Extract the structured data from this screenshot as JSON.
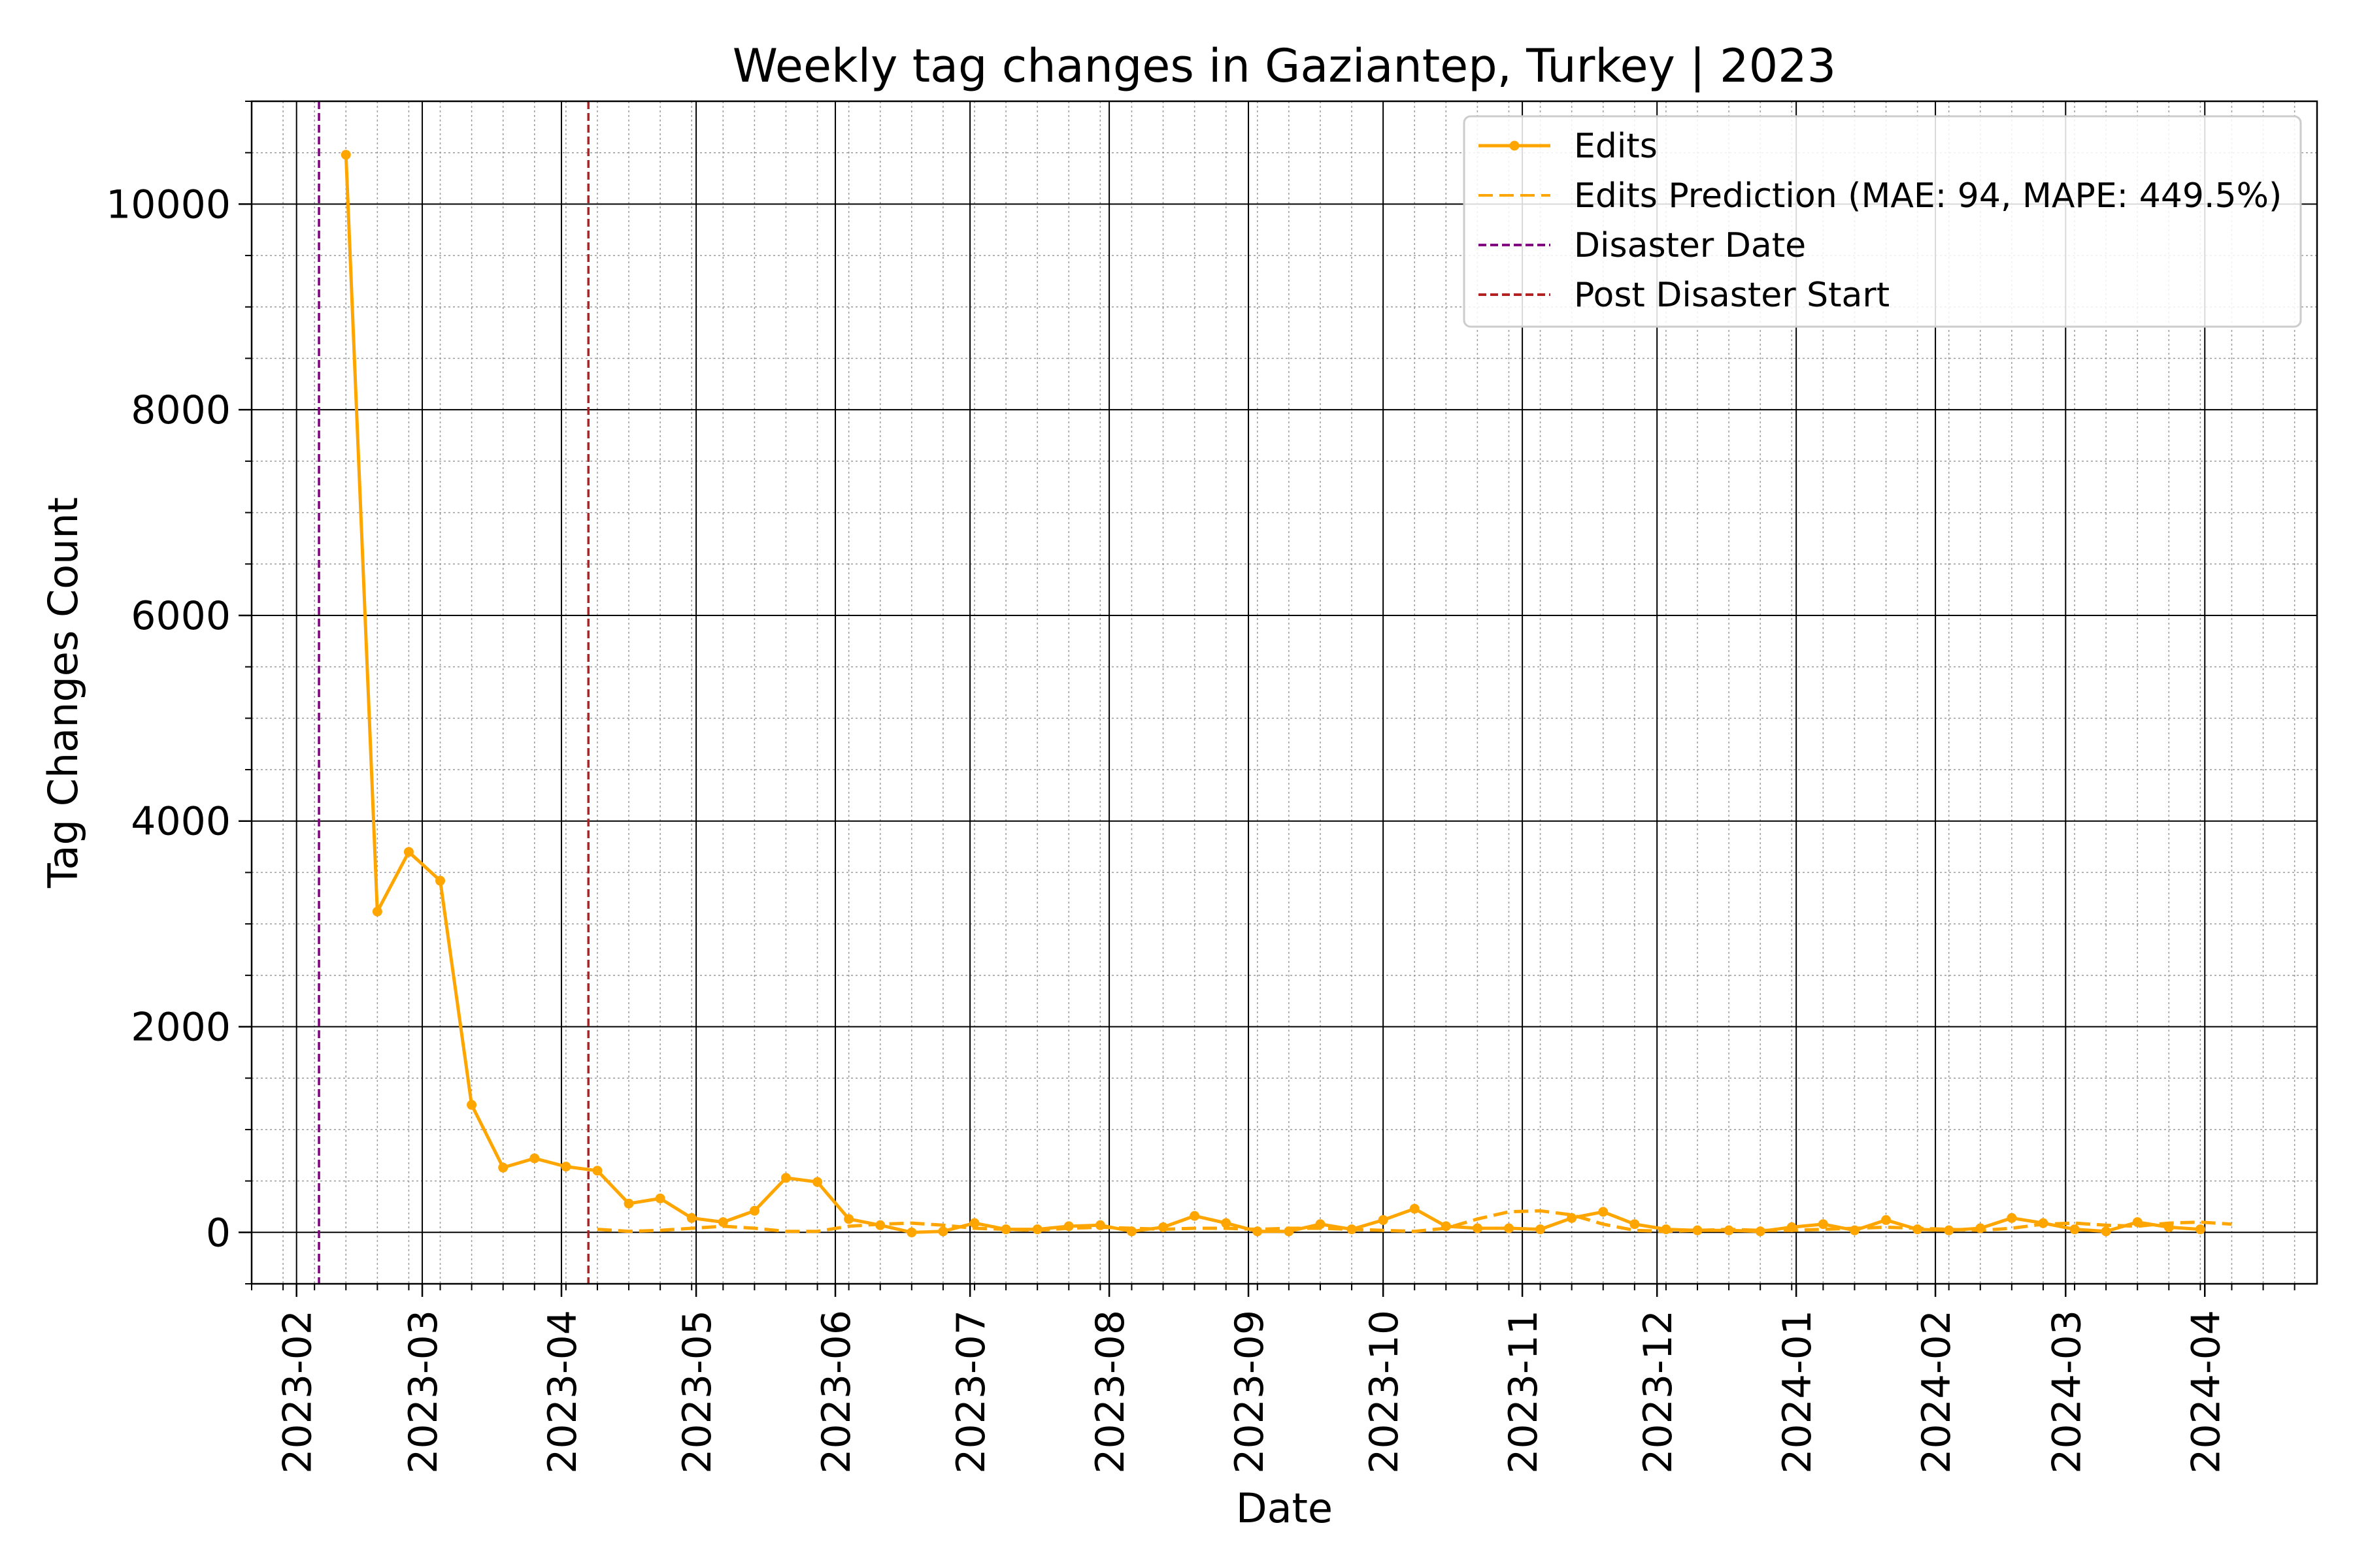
{
  "chart_data": {
    "type": "line",
    "title": "Weekly tag changes in Gaziantep, Turkey | 2023",
    "xlabel": "Date",
    "ylabel": "Tag Changes Count",
    "xlim": [
      "2023-01-22",
      "2024-04-26"
    ],
    "ylim": [
      -500,
      11000
    ],
    "x_ticks": [
      "2023-02",
      "2023-03",
      "2023-04",
      "2023-05",
      "2023-06",
      "2023-07",
      "2023-08",
      "2023-09",
      "2023-10",
      "2023-11",
      "2023-12",
      "2024-01",
      "2024-02",
      "2024-03",
      "2024-04"
    ],
    "y_ticks": [
      0,
      2000,
      4000,
      6000,
      8000,
      10000
    ],
    "grid": "major and minor",
    "legend_position": "top-right",
    "colors": {
      "edits": "#ffa500",
      "prediction": "#ffa500",
      "disaster": "#800080",
      "post_disaster": "#b22222"
    },
    "series": [
      {
        "name": "Edits",
        "style": "solid line with dot markers",
        "x": [
          "2023-02-12",
          "2023-02-19",
          "2023-02-26",
          "2023-03-05",
          "2023-03-12",
          "2023-03-19",
          "2023-03-26",
          "2023-04-02",
          "2023-04-09",
          "2023-04-16",
          "2023-04-23",
          "2023-04-30",
          "2023-05-07",
          "2023-05-14",
          "2023-05-21",
          "2023-05-28",
          "2023-06-04",
          "2023-06-11",
          "2023-06-18",
          "2023-06-25",
          "2023-07-02",
          "2023-07-09",
          "2023-07-16",
          "2023-07-23",
          "2023-07-30",
          "2023-08-06",
          "2023-08-13",
          "2023-08-20",
          "2023-08-27",
          "2023-09-03",
          "2023-09-10",
          "2023-09-17",
          "2023-09-24",
          "2023-10-01",
          "2023-10-08",
          "2023-10-15",
          "2023-10-22",
          "2023-10-29",
          "2023-11-05",
          "2023-11-12",
          "2023-11-19",
          "2023-11-26",
          "2023-12-03",
          "2023-12-10",
          "2023-12-17",
          "2023-12-24",
          "2023-12-31",
          "2024-01-07",
          "2024-01-14",
          "2024-01-21",
          "2024-01-28",
          "2024-02-04",
          "2024-02-11",
          "2024-02-18",
          "2024-02-25",
          "2024-03-03",
          "2024-03-10",
          "2024-03-17",
          "2024-03-24",
          "2024-03-31"
        ],
        "values": [
          10480,
          3120,
          3700,
          3420,
          1240,
          630,
          720,
          640,
          600,
          280,
          330,
          140,
          100,
          210,
          530,
          490,
          130,
          70,
          0,
          10,
          90,
          30,
          30,
          60,
          70,
          10,
          50,
          160,
          90,
          10,
          10,
          80,
          30,
          120,
          230,
          60,
          40,
          40,
          30,
          140,
          200,
          80,
          30,
          20,
          20,
          10,
          50,
          80,
          20,
          120,
          30,
          20,
          40,
          140,
          90,
          30,
          10,
          100,
          50,
          30
        ]
      },
      {
        "name": "Edits Prediction (MAE: 94, MAPE: 449.5%)",
        "style": "dashed line",
        "x": [
          "2023-04-09",
          "2023-04-16",
          "2023-04-23",
          "2023-04-30",
          "2023-05-07",
          "2023-05-14",
          "2023-05-21",
          "2023-05-28",
          "2023-06-04",
          "2023-06-11",
          "2023-06-18",
          "2023-06-25",
          "2023-07-02",
          "2023-07-09",
          "2023-07-16",
          "2023-07-23",
          "2023-07-30",
          "2023-08-06",
          "2023-08-13",
          "2023-08-20",
          "2023-08-27",
          "2023-09-03",
          "2023-09-10",
          "2023-09-17",
          "2023-09-24",
          "2023-10-01",
          "2023-10-08",
          "2023-10-15",
          "2023-10-22",
          "2023-10-29",
          "2023-11-05",
          "2023-11-12",
          "2023-11-19",
          "2023-11-26",
          "2023-12-03",
          "2023-12-10",
          "2023-12-17",
          "2023-12-24",
          "2023-12-31",
          "2024-01-07",
          "2024-01-14",
          "2024-01-21",
          "2024-01-28",
          "2024-02-04",
          "2024-02-11",
          "2024-02-18",
          "2024-02-25",
          "2024-03-03",
          "2024-03-10",
          "2024-03-17",
          "2024-03-24",
          "2024-03-31",
          "2024-04-07"
        ],
        "values": [
          30,
          10,
          20,
          40,
          60,
          40,
          10,
          10,
          60,
          80,
          90,
          70,
          40,
          30,
          20,
          40,
          50,
          40,
          30,
          40,
          40,
          30,
          40,
          40,
          30,
          20,
          10,
          40,
          130,
          200,
          210,
          170,
          80,
          20,
          10,
          20,
          30,
          20,
          20,
          30,
          40,
          50,
          40,
          30,
          20,
          40,
          80,
          90,
          70,
          60,
          90,
          100,
          80
        ]
      },
      {
        "name": "Disaster Date",
        "style": "vertical dashed line",
        "x": "2023-02-06"
      },
      {
        "name": "Post Disaster Start",
        "style": "vertical dashed line",
        "x": "2023-04-07"
      }
    ]
  }
}
